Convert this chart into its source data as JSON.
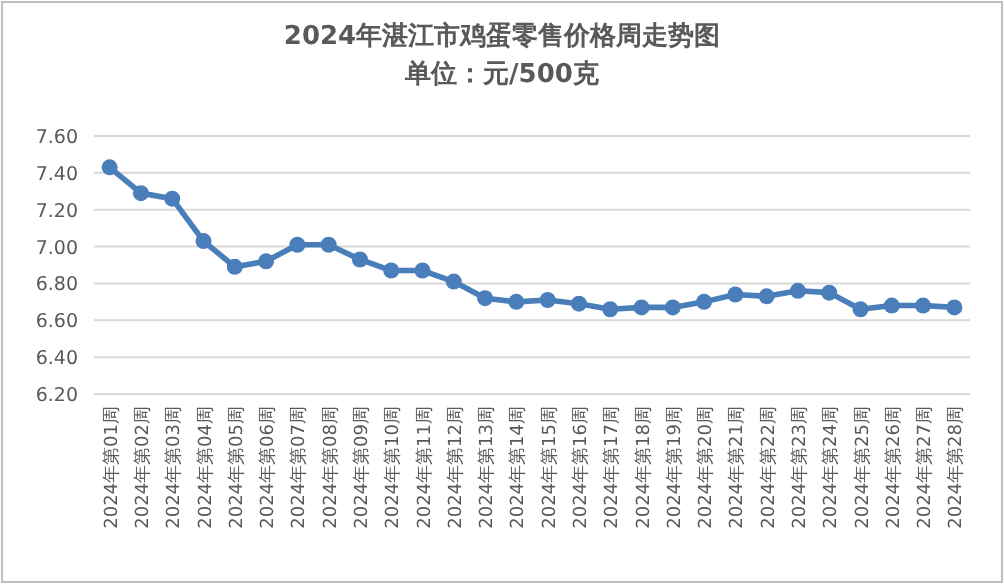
{
  "chart_data": {
    "type": "line",
    "title": "2024年湛江市鸡蛋零售价格周走势图",
    "subtitle": "单位：元/500克",
    "categories": [
      "2024年第01周",
      "2024年第02周",
      "2024年第03周",
      "2024年第04周",
      "2024年第05周",
      "2024年第06周",
      "2024年第07周",
      "2024年第08周",
      "2024年第09周",
      "2024年第10周",
      "2024年第11周",
      "2024年第12周",
      "2024年第13周",
      "2024年第14周",
      "2024年第15周",
      "2024年第16周",
      "2024年第17周",
      "2024年第18周",
      "2024年第19周",
      "2024年第20周",
      "2024年第21周",
      "2024年第22周",
      "2024年第23周",
      "2024年第24周",
      "2024年第25周",
      "2024年第26周",
      "2024年第27周",
      "2024年第28周"
    ],
    "series": [
      {
        "color": "#4a7ebb",
        "values": [
          7.43,
          7.29,
          7.26,
          7.03,
          6.89,
          6.92,
          7.01,
          7.01,
          6.93,
          6.87,
          6.87,
          6.81,
          6.72,
          6.7,
          6.71,
          6.69,
          6.66,
          6.67,
          6.67,
          6.7,
          6.74,
          6.73,
          6.76,
          6.75,
          6.66,
          6.68,
          6.68,
          6.67
        ]
      }
    ],
    "ylim": [
      6.2,
      7.6
    ],
    "yticks": [
      {
        "value": 6.2,
        "label": "6.20"
      },
      {
        "value": 6.4,
        "label": "6.40"
      },
      {
        "value": 6.6,
        "label": "6.60"
      },
      {
        "value": 6.8,
        "label": "6.80"
      },
      {
        "value": 7.0,
        "label": "7.00"
      },
      {
        "value": 7.2,
        "label": "7.20"
      },
      {
        "value": 7.4,
        "label": "7.40"
      },
      {
        "value": 7.6,
        "label": "7.60"
      }
    ],
    "grid": "y",
    "marker": "circle",
    "line_style": "solid"
  }
}
